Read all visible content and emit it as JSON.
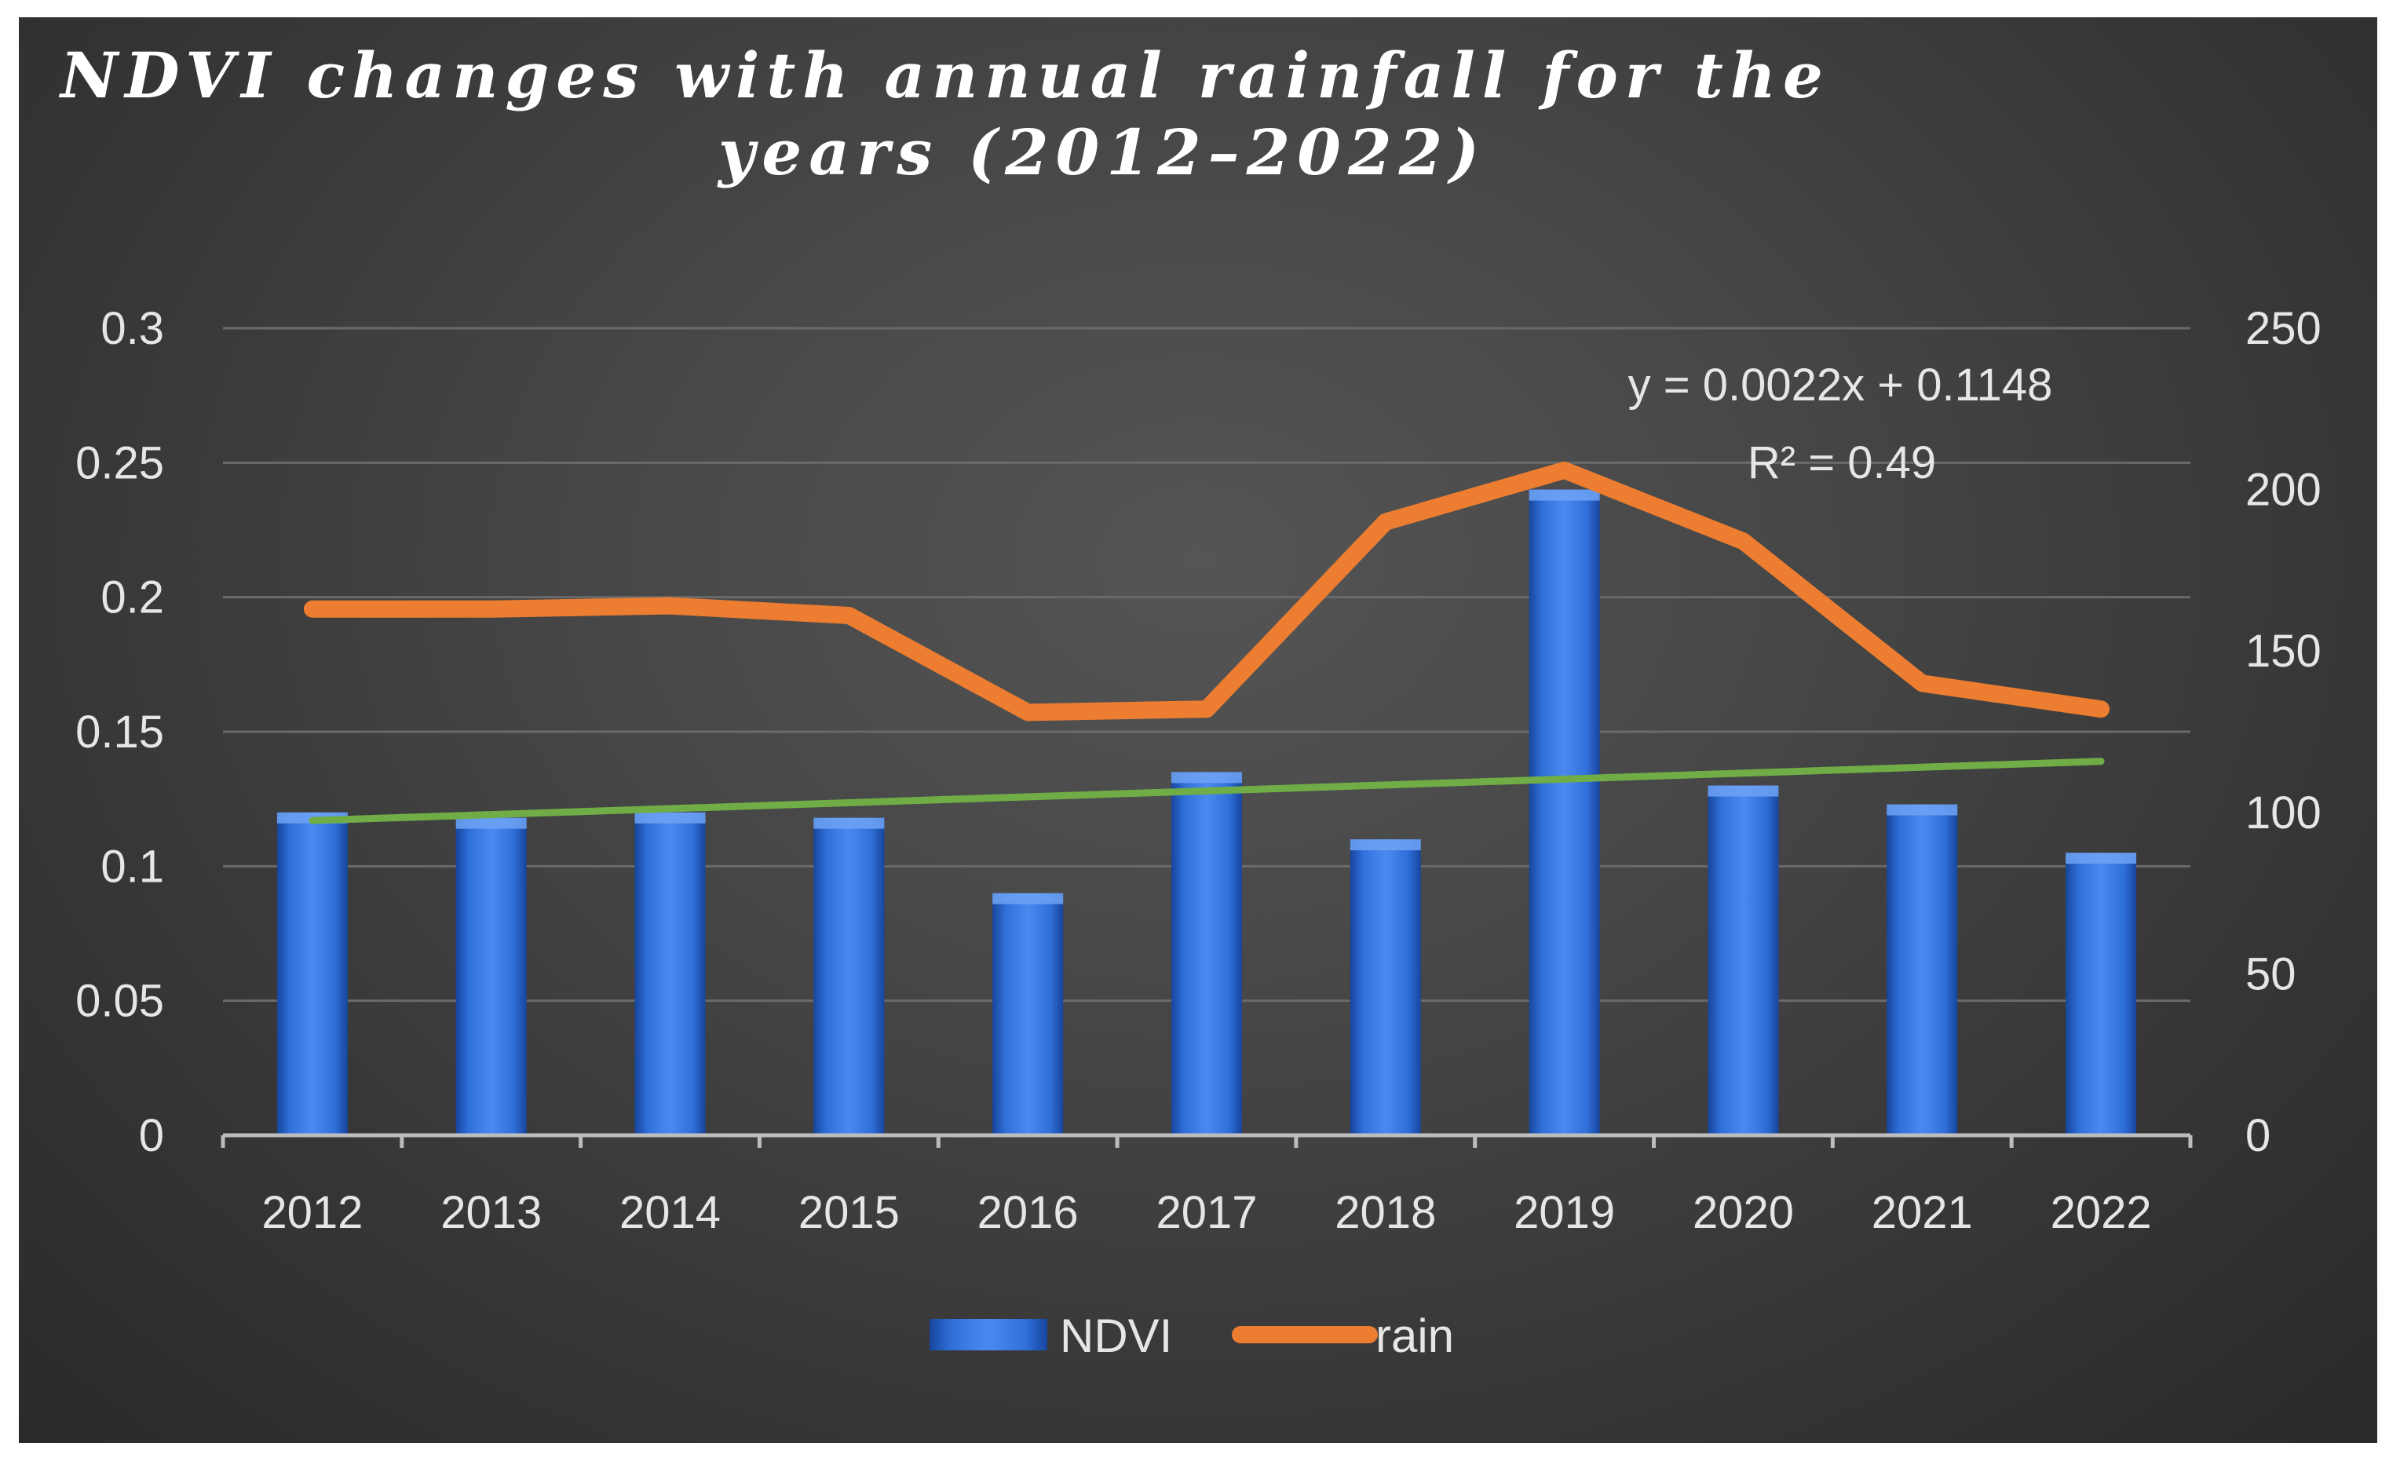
{
  "chart_data": {
    "type": "bar",
    "title_lines": [
      "NDVI changes with annual rainfall for the",
      "years (2012–2022)"
    ],
    "categories": [
      "2012",
      "2013",
      "2014",
      "2015",
      "2016",
      "2017",
      "2018",
      "2019",
      "2020",
      "2021",
      "2022"
    ],
    "series": [
      {
        "name": "NDVI",
        "type": "bar",
        "axis": "left",
        "color": "#2e6fd6",
        "values": [
          0.12,
          0.118,
          0.12,
          0.118,
          0.09,
          0.135,
          0.11,
          0.24,
          0.13,
          0.123,
          0.105
        ]
      },
      {
        "name": "rain",
        "type": "line",
        "axis": "right",
        "color": "#ed7d31",
        "values": [
          163,
          163,
          164,
          161,
          131,
          132,
          190,
          206,
          184,
          140,
          132
        ]
      }
    ],
    "trendline": {
      "series": "NDVI",
      "color": "#70ad47",
      "slope": 0.0022,
      "intercept": 0.1148,
      "equation": "y = 0.0022x + 0.1148",
      "r2_label": "R² = 0.49"
    },
    "y_left": {
      "min": 0,
      "max": 0.3,
      "ticks": [
        "0",
        "0.05",
        "0.1",
        "0.15",
        "0.2",
        "0.25",
        "0.3"
      ]
    },
    "y_right": {
      "min": 0,
      "max": 250,
      "ticks": [
        "0",
        "50",
        "100",
        "150",
        "200",
        "250"
      ]
    },
    "grid": true,
    "legend_position": "bottom",
    "legend": [
      {
        "label": "NDVI",
        "kind": "bar"
      },
      {
        "label": "rain",
        "kind": "line"
      }
    ]
  }
}
